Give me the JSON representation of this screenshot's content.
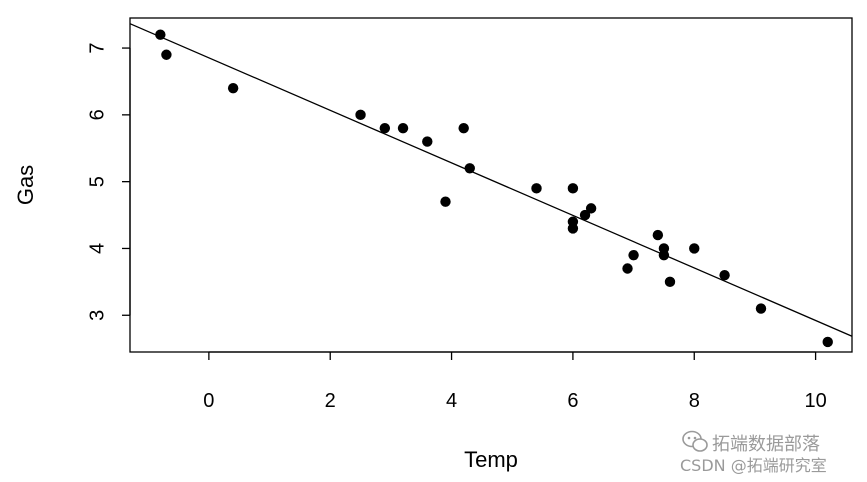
{
  "chart_data": {
    "type": "scatter",
    "xlabel": "Temp",
    "ylabel": "Gas",
    "xlim": [
      -1.3,
      10.6
    ],
    "ylim": [
      2.45,
      7.45
    ],
    "x_ticks": [
      0,
      2,
      4,
      6,
      8,
      10
    ],
    "y_ticks": [
      3,
      4,
      5,
      6,
      7
    ],
    "x_tick_labels": [
      "0",
      "2",
      "4",
      "6",
      "8",
      "10"
    ],
    "y_tick_labels": [
      "3",
      "4",
      "5",
      "6",
      "7"
    ],
    "grid": false,
    "points": [
      {
        "x": -0.8,
        "y": 7.2
      },
      {
        "x": -0.7,
        "y": 6.9
      },
      {
        "x": 0.4,
        "y": 6.4
      },
      {
        "x": 2.5,
        "y": 6.0
      },
      {
        "x": 2.9,
        "y": 5.8
      },
      {
        "x": 3.2,
        "y": 5.8
      },
      {
        "x": 3.6,
        "y": 5.6
      },
      {
        "x": 3.9,
        "y": 4.7
      },
      {
        "x": 4.2,
        "y": 5.8
      },
      {
        "x": 4.3,
        "y": 5.2
      },
      {
        "x": 5.4,
        "y": 4.9
      },
      {
        "x": 6.0,
        "y": 4.9
      },
      {
        "x": 6.0,
        "y": 4.4
      },
      {
        "x": 6.0,
        "y": 4.3
      },
      {
        "x": 6.2,
        "y": 4.5
      },
      {
        "x": 6.3,
        "y": 4.6
      },
      {
        "x": 6.9,
        "y": 3.7
      },
      {
        "x": 7.0,
        "y": 3.9
      },
      {
        "x": 7.4,
        "y": 4.2
      },
      {
        "x": 7.5,
        "y": 4.0
      },
      {
        "x": 7.5,
        "y": 3.9
      },
      {
        "x": 7.6,
        "y": 3.5
      },
      {
        "x": 8.0,
        "y": 4.0
      },
      {
        "x": 8.5,
        "y": 3.6
      },
      {
        "x": 9.1,
        "y": 3.1
      },
      {
        "x": 10.2,
        "y": 2.6
      }
    ],
    "fit_line": {
      "intercept": 6.854,
      "slope": -0.3932
    }
  },
  "watermark": {
    "line1": "拓端数据部落",
    "line2": "CSDN @拓端研究室"
  }
}
